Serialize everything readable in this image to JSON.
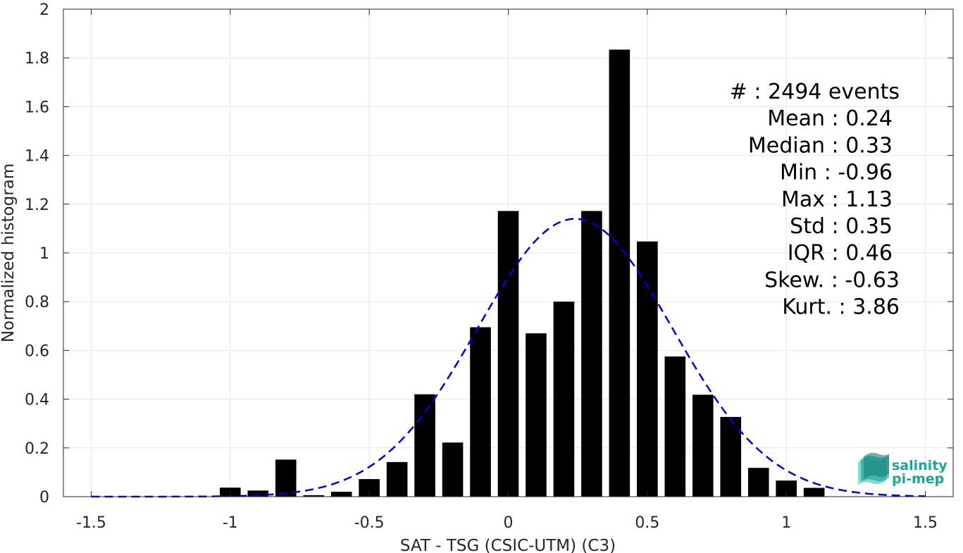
{
  "chart_data": {
    "type": "bar",
    "xlabel": "SAT - TSG (CSIC-UTM) (C3)",
    "ylabel": "Normalized histogram",
    "xlim": [
      -1.6,
      1.6
    ],
    "ylim": [
      0,
      2
    ],
    "xticks": [
      -1.5,
      -1,
      -0.5,
      0,
      0.5,
      1,
      1.5
    ],
    "xtick_labels": [
      "-1.5",
      "-1",
      "-0.5",
      "0",
      "0.5",
      "1",
      "1.5"
    ],
    "yticks": [
      0,
      0.2,
      0.4,
      0.6,
      0.8,
      1,
      1.2,
      1.4,
      1.6,
      1.8,
      2
    ],
    "ytick_labels": [
      "0",
      "0.2",
      "0.4",
      "0.6",
      "0.8",
      "1",
      "1.2",
      "1.4",
      "1.6",
      "1.8",
      "2"
    ],
    "grid": true,
    "bar_width": 0.075,
    "bar_color": "#000000",
    "x": [
      -1.0,
      -0.9,
      -0.8,
      -0.7,
      -0.6,
      -0.5,
      -0.4,
      -0.3,
      -0.2,
      -0.1,
      0.0,
      0.1,
      0.2,
      0.3,
      0.4,
      0.5,
      0.6,
      0.7,
      0.8,
      0.9,
      1.0,
      1.1
    ],
    "values": [
      0.037,
      0.025,
      0.152,
      0.006,
      0.02,
      0.072,
      0.142,
      0.42,
      0.222,
      0.695,
      1.172,
      0.67,
      0.8,
      1.172,
      1.834,
      1.047,
      0.575,
      0.418,
      0.327,
      0.118,
      0.066,
      0.036
    ],
    "fit_curve": {
      "style": "dashed",
      "color": "#0000e6",
      "mean": 0.24,
      "std": 0.35,
      "x_range": [
        -1.5,
        1.5
      ]
    },
    "stats": [
      {
        "label": "#  ",
        "value": ": 2494 events"
      },
      {
        "label": "Mean ",
        "value": ": 0.24"
      },
      {
        "label": "Median ",
        "value": ": 0.33"
      },
      {
        "label": "Min ",
        "value": ": -0.96"
      },
      {
        "label": "Max ",
        "value": ": 1.13"
      },
      {
        "label": "Std ",
        "value": ": 0.35"
      },
      {
        "label": "IQR ",
        "value": ": 0.46"
      },
      {
        "label": "Skew. ",
        "value": ": -0.63"
      },
      {
        "label": "Kurt. ",
        "value": ": 3.86"
      }
    ]
  },
  "logo": {
    "line1": "salinity",
    "line2": "pi-mep",
    "color": "#1aa59a"
  }
}
